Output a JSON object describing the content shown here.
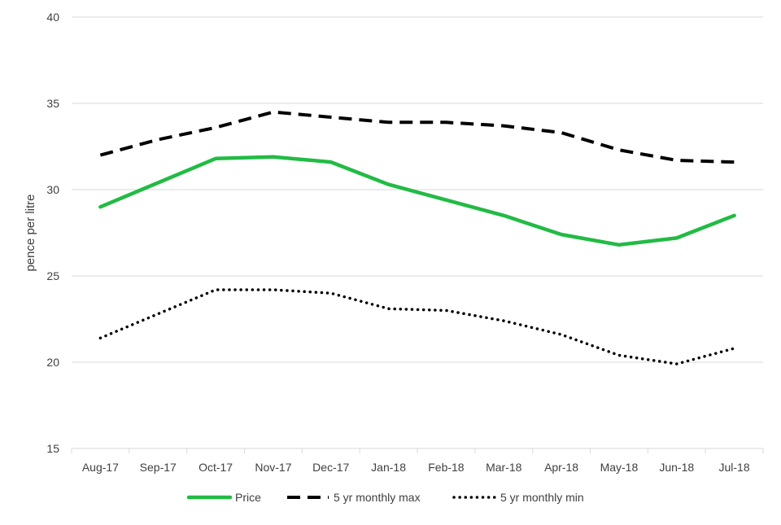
{
  "chart_data": {
    "type": "line",
    "title": "",
    "xlabel": "",
    "ylabel": "pence per litre",
    "ylim": [
      15,
      40
    ],
    "yticks": [
      15,
      20,
      25,
      30,
      35,
      40
    ],
    "grid": true,
    "legend_position": "bottom",
    "categories": [
      "Aug-17",
      "Sep-17",
      "Oct-17",
      "Nov-17",
      "Dec-17",
      "Jan-18",
      "Feb-18",
      "Mar-18",
      "Apr-18",
      "May-18",
      "Jun-18",
      "Jul-18"
    ],
    "series": [
      {
        "name": "Price",
        "style": "solid",
        "color": "#22bb44",
        "values": [
          29.0,
          30.4,
          31.8,
          31.9,
          31.6,
          30.3,
          29.4,
          28.5,
          27.4,
          26.8,
          27.2,
          28.5
        ]
      },
      {
        "name": "5 yr monthly max",
        "style": "dashed",
        "color": "#000000",
        "values": [
          32.0,
          32.9,
          33.6,
          34.5,
          34.2,
          33.9,
          33.9,
          33.7,
          33.3,
          32.3,
          31.7,
          31.6
        ]
      },
      {
        "name": "5 yr monthly min",
        "style": "dotted",
        "color": "#000000",
        "values": [
          21.4,
          22.8,
          24.2,
          24.2,
          24.0,
          23.1,
          23.0,
          22.4,
          21.6,
          20.4,
          19.9,
          20.8
        ]
      }
    ]
  }
}
